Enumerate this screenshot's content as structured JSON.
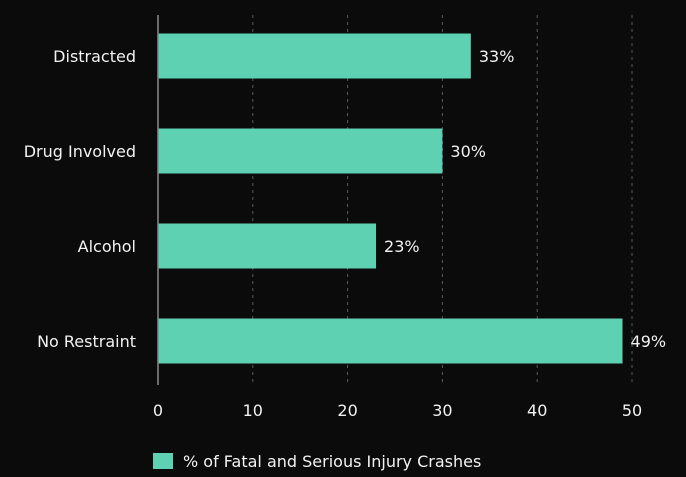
{
  "chart_data": {
    "type": "bar",
    "orientation": "horizontal",
    "categories": [
      "Distracted",
      "Drug Involved",
      "Alcohol",
      "No Restraint"
    ],
    "series": [
      {
        "name": "% of Fatal and Serious Injury Crashes",
        "values": [
          33,
          30,
          23,
          49
        ],
        "data_labels": [
          "33%",
          "30%",
          "23%",
          "49%"
        ]
      }
    ],
    "xlim": [
      0,
      50
    ],
    "x_ticks": [
      0,
      10,
      20,
      30,
      40,
      50
    ],
    "grid": true,
    "legend_position": "bottom-center",
    "colors": {
      "bar": "#5fd1b3",
      "background": "#0b0b0b",
      "text": "#f2f2f2"
    }
  }
}
